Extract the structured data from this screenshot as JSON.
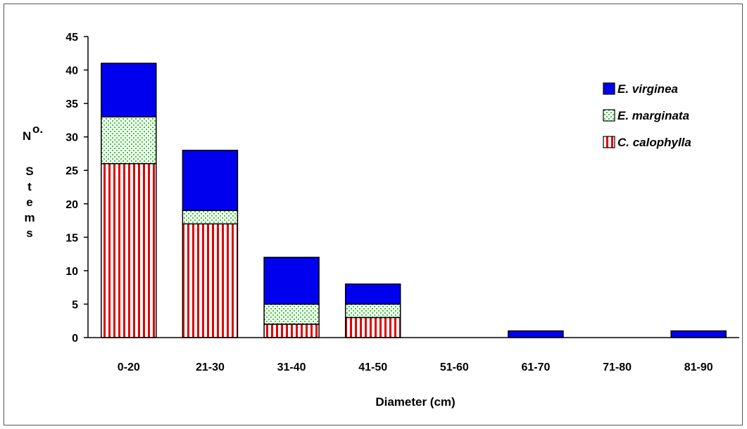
{
  "chart_data": {
    "type": "bar",
    "stacked": true,
    "categories": [
      "0-20",
      "21-30",
      "31-40",
      "41-50",
      "51-60",
      "61-70",
      "71-80",
      "81-90"
    ],
    "series": [
      {
        "name": "C. calophylla",
        "values": [
          26,
          17,
          2,
          3,
          0,
          0,
          0,
          0
        ],
        "color": "#e00000",
        "pattern": "vertical-stripes"
      },
      {
        "name": "E. marginata",
        "values": [
          7,
          2,
          3,
          2,
          0,
          0,
          0,
          0
        ],
        "color": "#33cc33",
        "pattern": "dots"
      },
      {
        "name": "E. virginea",
        "values": [
          8,
          9,
          7,
          3,
          0,
          1,
          0,
          1
        ],
        "color": "#0000ee",
        "pattern": "solid"
      }
    ],
    "legend_order": [
      "E. virginea",
      "E. marginata",
      "C. calophylla"
    ],
    "legend_position": "top-right",
    "xlabel": "Diameter (cm)",
    "ylabel": "No. Stems",
    "ylabel_main": "N",
    "ylabel_super": "o.",
    "ylabel_rest": [
      "S",
      "t",
      "e",
      "m",
      "s"
    ],
    "ylim": [
      0,
      45
    ],
    "yticks": [
      0,
      5,
      10,
      15,
      20,
      25,
      30,
      35,
      40,
      45
    ],
    "grid": false
  }
}
